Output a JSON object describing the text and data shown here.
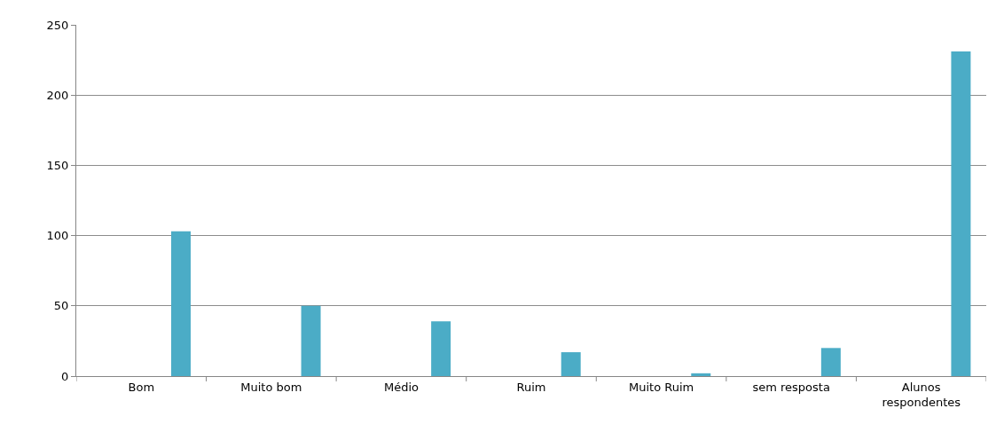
{
  "chart_data": {
    "type": "bar",
    "categories": [
      "Bom",
      "Muito bom",
      "Médio",
      "Ruim",
      "Muito Ruim",
      "sem resposta",
      "Alunos respondentes"
    ],
    "values": [
      103,
      50,
      39,
      17,
      2,
      20,
      231
    ],
    "color": "#4bacc6",
    "ylim": [
      0,
      250
    ],
    "yticks": [
      0,
      50,
      100,
      150,
      200,
      250
    ],
    "grid": "y"
  }
}
